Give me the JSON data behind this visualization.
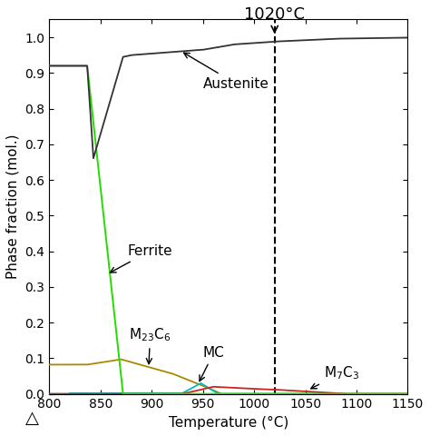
{
  "title": "1020°C",
  "xlabel": "Temperature (°C)",
  "ylabel": "Phase fraction (mol.)",
  "xlim": [
    800,
    1150
  ],
  "ylim": [
    0.0,
    1.05
  ],
  "xticks": [
    800,
    850,
    900,
    950,
    1000,
    1050,
    1100,
    1150
  ],
  "yticks": [
    0.0,
    0.1,
    0.2,
    0.3,
    0.4,
    0.5,
    0.6,
    0.7,
    0.8,
    0.9,
    1.0
  ],
  "vline_x": 1020,
  "austenite_color": "#333333",
  "ferrite_color": "#22dd00",
  "m23c6_color": "#aa8800",
  "mc_color": "#00bbbb",
  "m7c3_color": "#cc2222",
  "background_color": "#ffffff",
  "label_fontsize": 11,
  "tick_fontsize": 10,
  "annotation_fontsize": 11
}
